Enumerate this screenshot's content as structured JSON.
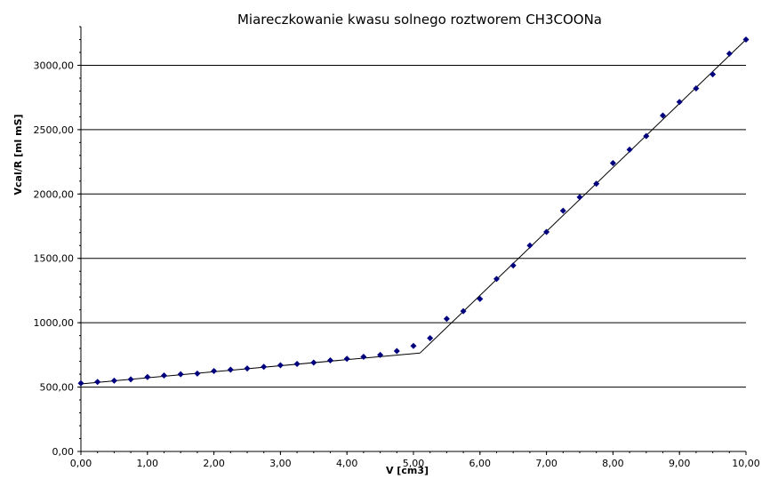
{
  "chart_data": {
    "type": "scatter",
    "title": "Miareczkowanie kwasu solnego roztworem CH3COONa",
    "xlabel": "V [cm3]",
    "ylabel": "Vcal/R [ml mS]",
    "xlim": [
      0,
      10
    ],
    "ylim": [
      0,
      3300
    ],
    "x_ticks": [
      "0,00",
      "1,00",
      "2,00",
      "3,00",
      "4,00",
      "5,00",
      "6,00",
      "7,00",
      "8,00",
      "9,00",
      "10,00"
    ],
    "y_ticks": [
      "0,00",
      "500,00",
      "1000,00",
      "1500,00",
      "2000,00",
      "2500,00",
      "3000,00"
    ],
    "grid": "horizontal",
    "marker_color": "#00007f",
    "series": [
      {
        "x": [
          0,
          0.25,
          0.5,
          0.75,
          1,
          1.25,
          1.5,
          1.75,
          2,
          2.25,
          2.5,
          2.75,
          3,
          3.25,
          3.5,
          3.75,
          4,
          4.25,
          4.5,
          4.75,
          5,
          5.25,
          5.5,
          5.75,
          6,
          6.25,
          6.5,
          6.75,
          7,
          7.25,
          7.5,
          7.75,
          8,
          8.25,
          8.5,
          8.75,
          9,
          9.25,
          9.5,
          9.75,
          10
        ],
        "y": [
          530,
          540,
          550,
          560,
          578,
          590,
          600,
          605,
          625,
          635,
          645,
          658,
          670,
          680,
          690,
          708,
          720,
          735,
          750,
          780,
          820,
          880,
          1030,
          1090,
          1185,
          1340,
          1445,
          1600,
          1705,
          1870,
          1975,
          2080,
          2240,
          2345,
          2450,
          2610,
          2715,
          2820,
          2930,
          3090,
          3200
        ]
      }
    ],
    "trend_lines": [
      {
        "x": [
          0,
          5.1
        ],
        "y": [
          525,
          765
        ]
      },
      {
        "x": [
          5.1,
          10
        ],
        "y": [
          765,
          3200
        ]
      }
    ]
  }
}
